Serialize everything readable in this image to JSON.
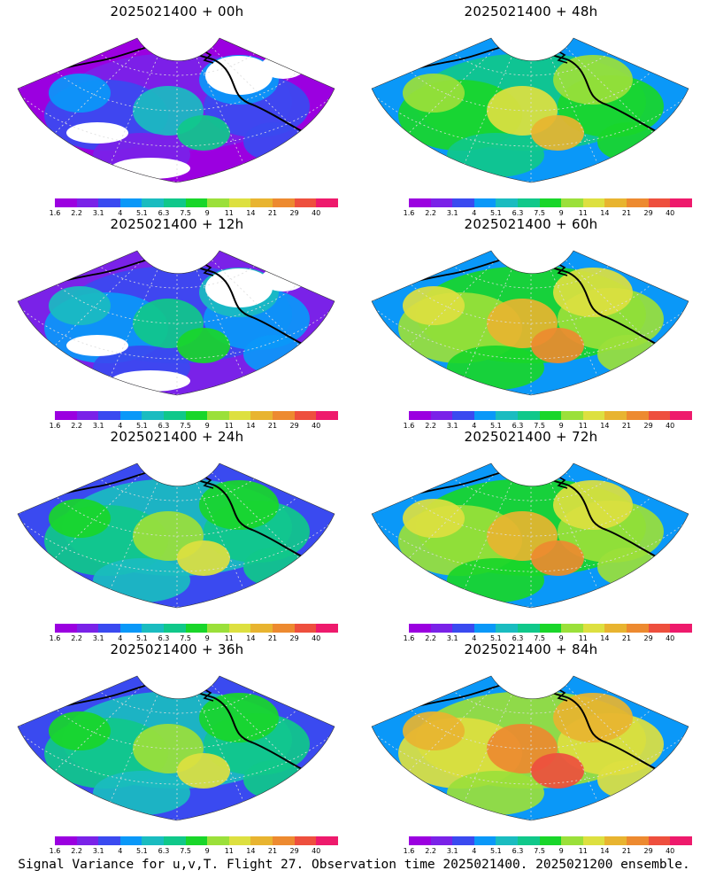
{
  "panels": [
    {
      "title": "2025021400 + 00h",
      "level": 0
    },
    {
      "title": "2025021400 + 48h",
      "level": 3
    },
    {
      "title": "2025021400 + 12h",
      "level": 1
    },
    {
      "title": "2025021400 + 60h",
      "level": 4
    },
    {
      "title": "2025021400 + 24h",
      "level": 2
    },
    {
      "title": "2025021400 + 72h",
      "level": 5
    },
    {
      "title": "2025021400 + 36h",
      "level": 2
    },
    {
      "title": "2025021400 + 84h",
      "level": 6
    }
  ],
  "colorbar": {
    "colors": [
      "#9b00e0",
      "#7a22e8",
      "#3a4af0",
      "#0a98f8",
      "#1abcc0",
      "#10c88a",
      "#19d62a",
      "#9be03a",
      "#dde040",
      "#e8b430",
      "#ed8a30",
      "#ee4f3e",
      "#ee1a6c"
    ],
    "labels": [
      "1.6",
      "2.2",
      "3.1",
      "4",
      "5.1",
      "6.3",
      "7.5",
      "9",
      "11",
      "14",
      "21",
      "29",
      "40"
    ]
  },
  "footer": "Signal Variance for u,v,T. Flight 27. Observation time 2025021400. 2025021200 ensemble."
}
